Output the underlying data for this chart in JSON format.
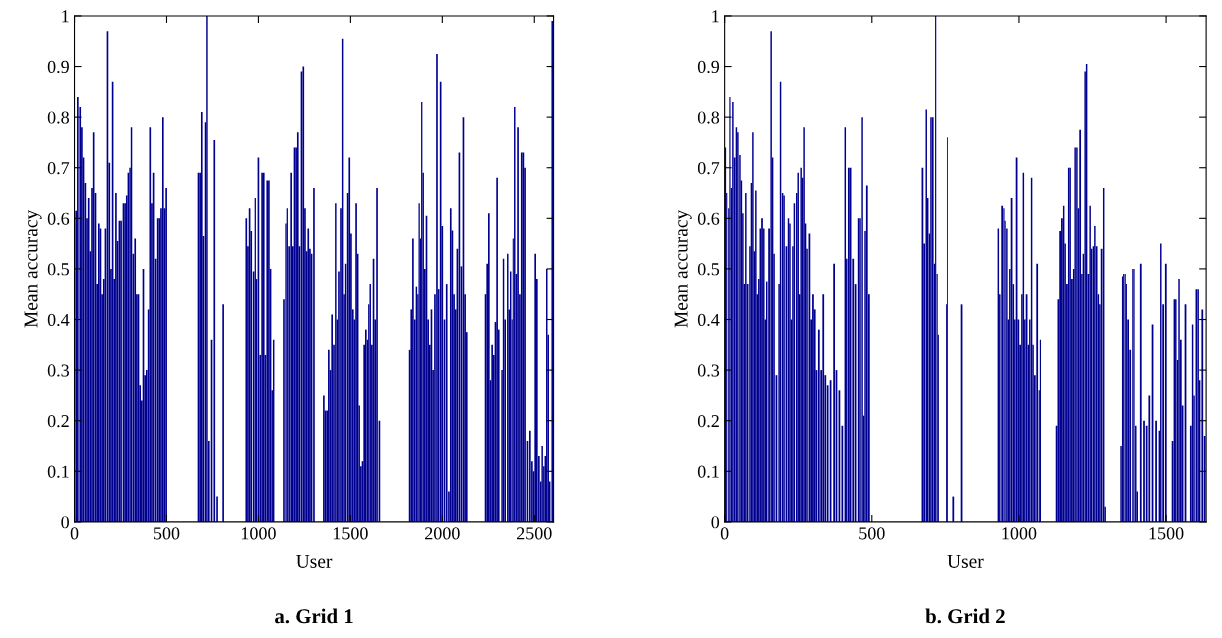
{
  "chart_data": [
    {
      "type": "bar",
      "title": "a. Grid 1",
      "xlabel": "User",
      "ylabel": "Mean accuracy",
      "color": "#000090",
      "x": [
        9,
        18,
        31,
        40,
        49,
        59,
        68,
        77,
        86,
        95,
        104,
        114,
        123,
        132,
        141,
        150,
        159,
        168,
        179,
        189,
        198,
        207,
        216,
        225,
        234,
        244,
        253,
        266,
        275,
        284,
        293,
        302,
        310,
        320,
        330,
        339,
        348,
        357,
        366,
        375,
        384,
        393,
        403,
        412,
        421,
        430,
        441,
        452,
        461,
        470,
        480,
        489,
        498,
        674,
        683,
        692,
        701,
        712,
        720,
        730,
        745,
        760,
        775,
        808,
        934,
        943,
        952,
        961,
        974,
        983,
        990,
        1000,
        1010,
        1020,
        1029,
        1038,
        1048,
        1057,
        1066,
        1075,
        1083,
        1139,
        1150,
        1157,
        1167,
        1178,
        1187,
        1196,
        1205,
        1214,
        1223,
        1234,
        1244,
        1253,
        1262,
        1271,
        1280,
        1289,
        1302,
        1356,
        1365,
        1374,
        1383,
        1392,
        1401,
        1411,
        1421,
        1429,
        1438,
        1449,
        1458,
        1466,
        1474,
        1485,
        1494,
        1503,
        1513,
        1522,
        1531,
        1540,
        1548,
        1557,
        1566,
        1575,
        1584,
        1593,
        1600,
        1608,
        1617,
        1626,
        1635,
        1645,
        1658,
        1822,
        1831,
        1840,
        1850,
        1859,
        1867,
        1874,
        1881,
        1888,
        1896,
        1905,
        1914,
        1923,
        1932,
        1941,
        1950,
        1960,
        1971,
        1980,
        1991,
        2000,
        2012,
        2024,
        2036,
        2046,
        2055,
        2064,
        2073,
        2082,
        2093,
        2104,
        2115,
        2124,
        2133,
        2235,
        2244,
        2253,
        2262,
        2271,
        2280,
        2289,
        2298,
        2307,
        2325,
        2333,
        2342,
        2356,
        2364,
        2372,
        2380,
        2386,
        2394,
        2403,
        2412,
        2422,
        2432,
        2441,
        2450,
        2463,
        2476,
        2487,
        2496,
        2505,
        2514,
        2525,
        2535,
        2543,
        2552,
        2560,
        2568,
        2576,
        2584,
        2598
      ],
      "values": [
        0.615,
        0.84,
        0.82,
        0.78,
        0.72,
        0.67,
        0.6,
        0.64,
        0.535,
        0.66,
        0.77,
        0.65,
        0.47,
        0.59,
        0.58,
        0.45,
        0.48,
        0.58,
        0.97,
        0.71,
        0.5,
        0.87,
        0.48,
        0.65,
        0.555,
        0.595,
        0.595,
        0.63,
        0.63,
        0.645,
        0.69,
        0.7,
        0.78,
        0.53,
        0.56,
        0.45,
        0.45,
        0.27,
        0.24,
        0.5,
        0.29,
        0.3,
        0.42,
        0.78,
        0.63,
        0.69,
        0.52,
        0.6,
        0.6,
        0.62,
        0.8,
        0.62,
        0.66,
        0.69,
        0.69,
        0.81,
        0.565,
        0.79,
        1.0,
        0.16,
        0.36,
        0.755,
        0.05,
        0.43,
        0.6,
        0.545,
        0.62,
        0.575,
        0.495,
        0.64,
        0.48,
        0.72,
        0.33,
        0.69,
        0.69,
        0.33,
        0.675,
        0.675,
        0.5,
        0.26,
        0.36,
        0.44,
        0.59,
        0.62,
        0.545,
        0.69,
        0.545,
        0.74,
        0.74,
        0.77,
        0.545,
        0.89,
        0.9,
        0.62,
        0.535,
        0.58,
        0.54,
        0.53,
        0.66,
        0.25,
        0.22,
        0.22,
        0.34,
        0.3,
        0.41,
        0.35,
        0.63,
        0.4,
        0.495,
        0.62,
        0.955,
        0.45,
        0.51,
        0.65,
        0.72,
        0.57,
        0.42,
        0.4,
        0.63,
        0.53,
        0.23,
        0.11,
        0.12,
        0.35,
        0.38,
        0.36,
        0.43,
        0.47,
        0.35,
        0.52,
        0.4,
        0.66,
        0.2,
        0.34,
        0.42,
        0.56,
        0.4,
        0.465,
        0.45,
        0.63,
        0.56,
        0.83,
        0.69,
        0.5,
        0.605,
        0.4,
        0.35,
        0.42,
        0.3,
        0.45,
        0.925,
        0.46,
        0.87,
        0.585,
        0.4,
        0.47,
        0.06,
        0.62,
        0.576,
        0.45,
        0.42,
        0.54,
        0.73,
        0.505,
        0.8,
        0.45,
        0.375,
        0.45,
        0.51,
        0.61,
        0.28,
        0.35,
        0.33,
        0.395,
        0.68,
        0.38,
        0.3,
        0.52,
        0.4,
        0.53,
        0.42,
        0.495,
        0.4,
        0.56,
        0.82,
        0.49,
        0.78,
        0.45,
        0.73,
        0.73,
        0.7,
        0.16,
        0.18,
        0.12,
        0.1,
        0.53,
        0.48,
        0.13,
        0.08,
        0.15,
        0.11,
        0.13,
        0.5,
        0.37,
        0.08,
        0.99
      ],
      "xlim": [
        0,
        2605
      ],
      "xticks": [
        0,
        500,
        1000,
        1500,
        2000,
        2500
      ],
      "ylim": [
        0,
        1
      ],
      "yticks": [
        0,
        0.1,
        0.2,
        0.3,
        0.4,
        0.5,
        0.6,
        0.7,
        0.8,
        0.9,
        1
      ]
    },
    {
      "type": "bar",
      "title": "b. Grid 2",
      "xlabel": "User",
      "ylabel": "Mean accuracy",
      "color": "#000090",
      "x": [
        3,
        7,
        14,
        18,
        23,
        28,
        34,
        40,
        45,
        52,
        57,
        62,
        67,
        72,
        78,
        86,
        91,
        96,
        101,
        106,
        111,
        116,
        121,
        127,
        133,
        138,
        143,
        151,
        158,
        163,
        168,
        176,
        185,
        190,
        197,
        202,
        210,
        217,
        222,
        227,
        232,
        237,
        245,
        250,
        255,
        260,
        265,
        270,
        275,
        280,
        288,
        294,
        300,
        306,
        312,
        320,
        328,
        335,
        342,
        350,
        360,
        372,
        380,
        390,
        400,
        410,
        415,
        422,
        428,
        437,
        445,
        455,
        460,
        467,
        472,
        477,
        483,
        490,
        672,
        678,
        685,
        690,
        696,
        701,
        707,
        713,
        717,
        722,
        726,
        754,
        757,
        777,
        805,
        930,
        935,
        943,
        949,
        953,
        959,
        964,
        969,
        975,
        981,
        986,
        992,
        998,
        1004,
        1010,
        1015,
        1020,
        1026,
        1032,
        1037,
        1043,
        1048,
        1054,
        1062,
        1069,
        1073,
        1128,
        1134,
        1140,
        1146,
        1152,
        1157,
        1163,
        1169,
        1174,
        1180,
        1186,
        1191,
        1197,
        1202,
        1208,
        1214,
        1219,
        1225,
        1230,
        1236,
        1242,
        1247,
        1253,
        1258,
        1264,
        1270,
        1275,
        1281,
        1288,
        1293,
        1347,
        1352,
        1356,
        1361,
        1365,
        1371,
        1378,
        1387,
        1391,
        1397,
        1402,
        1414,
        1425,
        1434,
        1443,
        1454,
        1466,
        1477,
        1482,
        1490,
        1499,
        1522,
        1528,
        1533,
        1539,
        1544,
        1550,
        1556,
        1566,
        1584,
        1590,
        1595,
        1603,
        1609,
        1614,
        1623,
        1631
      ],
      "values": [
        0.74,
        0.65,
        0.62,
        0.84,
        0.66,
        0.83,
        0.72,
        0.78,
        0.77,
        0.725,
        0.675,
        0.61,
        0.47,
        0.65,
        0.47,
        0.545,
        0.67,
        0.77,
        0.535,
        0.655,
        0.45,
        0.48,
        0.58,
        0.6,
        0.58,
        0.4,
        0.475,
        0.58,
        0.97,
        0.72,
        0.53,
        0.29,
        0.47,
        0.87,
        0.65,
        0.645,
        0.545,
        0.6,
        0.59,
        0.4,
        0.545,
        0.63,
        0.65,
        0.69,
        0.45,
        0.7,
        0.68,
        0.78,
        0.59,
        0.54,
        0.57,
        0.4,
        0.45,
        0.42,
        0.3,
        0.38,
        0.3,
        0.45,
        0.29,
        0.27,
        0.28,
        0.51,
        0.3,
        0.26,
        0.19,
        0.78,
        0.52,
        0.7,
        0.7,
        0.52,
        0.47,
        0.6,
        0.6,
        0.8,
        0.21,
        0.575,
        0.665,
        0.45,
        0.7,
        0.55,
        0.815,
        0.64,
        0.57,
        0.8,
        0.8,
        0.51,
        1.0,
        0.49,
        0.37,
        0.43,
        0.76,
        0.05,
        0.43,
        0.58,
        0.45,
        0.625,
        0.62,
        0.595,
        0.58,
        0.4,
        0.5,
        0.64,
        0.47,
        0.4,
        0.72,
        0.4,
        0.35,
        0.45,
        0.69,
        0.4,
        0.45,
        0.35,
        0.4,
        0.68,
        0.35,
        0.29,
        0.51,
        0.26,
        0.36,
        0.19,
        0.44,
        0.575,
        0.6,
        0.625,
        0.55,
        0.47,
        0.7,
        0.7,
        0.48,
        0.5,
        0.74,
        0.74,
        0.62,
        0.775,
        0.49,
        0.53,
        0.89,
        0.905,
        0.49,
        0.625,
        0.54,
        0.545,
        0.585,
        0.545,
        0.45,
        0.43,
        0.54,
        0.66,
        0.03,
        0.15,
        0.485,
        0.49,
        0.49,
        0.47,
        0.4,
        0.34,
        0.5,
        0.5,
        0.19,
        0.06,
        0.51,
        0.2,
        0.19,
        0.25,
        0.39,
        0.2,
        0.18,
        0.55,
        0.43,
        0.51,
        0.16,
        0.44,
        0.44,
        0.32,
        0.48,
        0.36,
        0.23,
        0.43,
        0.19,
        0.39,
        0.25,
        0.46,
        0.46,
        0.28,
        0.42,
        0.17
      ],
      "xlim": [
        0,
        1636
      ],
      "xticks": [
        0,
        500,
        1000,
        1500
      ],
      "ylim": [
        0,
        1
      ],
      "yticks": [
        0,
        0.1,
        0.2,
        0.3,
        0.4,
        0.5,
        0.6,
        0.7,
        0.8,
        0.9,
        1
      ]
    }
  ]
}
